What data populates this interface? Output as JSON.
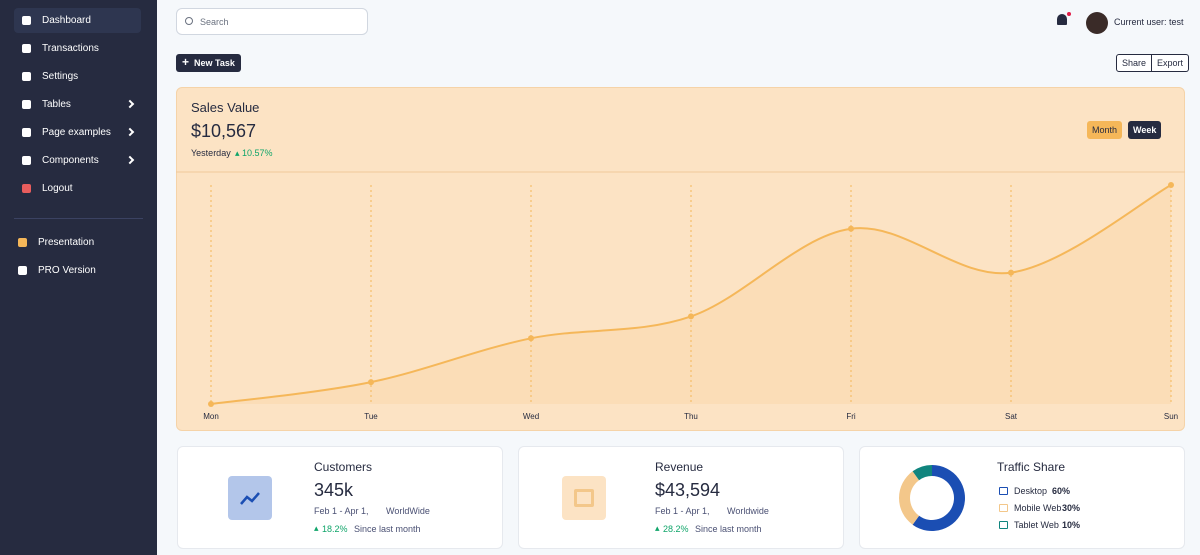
{
  "sidebar": {
    "items": [
      "Dashboard",
      "Transactions",
      "Settings",
      "Tables",
      "Page examples",
      "Components",
      "Logout"
    ],
    "extra": [
      "Presentation",
      "PRO Version"
    ]
  },
  "header": {
    "search_placeholder": "Search",
    "user": "Current user: test"
  },
  "toolbar": {
    "new_task": "New Task",
    "share": "Share",
    "export": "Export"
  },
  "sales": {
    "title": "Sales Value",
    "value": "$10,567",
    "period": "Yesterday",
    "change": "10.57%",
    "toggles": [
      "Month",
      "Week"
    ],
    "chart": {
      "type": "line",
      "categories": [
        "Mon",
        "Tue",
        "Wed",
        "Thu",
        "Fri",
        "Sat",
        "Sun"
      ],
      "values": [
        0,
        10,
        30,
        40,
        80,
        60,
        100
      ],
      "ylim": [
        0,
        100
      ],
      "color": "#f5b759"
    }
  },
  "cards": [
    {
      "title": "Customers",
      "value": "345k",
      "period": "Feb 1 - Apr 1,",
      "region": "WorldWide",
      "change": "18.2%",
      "since": "Since last month"
    },
    {
      "title": "Revenue",
      "value": "$43,594",
      "period": "Feb 1 - Apr 1,",
      "region": "Worldwide",
      "change": "28.2%",
      "since": "Since last month"
    }
  ],
  "traffic": {
    "type": "pie",
    "title": "Traffic Share",
    "categories": [
      "Desktop",
      "Mobile Web",
      "Tablet Web"
    ],
    "values": [
      60,
      30,
      10
    ],
    "value_labels": [
      "60%",
      "30%",
      "10%"
    ],
    "colors": [
      "#1b4eb3",
      "#f3c78a",
      "#10857e"
    ]
  }
}
